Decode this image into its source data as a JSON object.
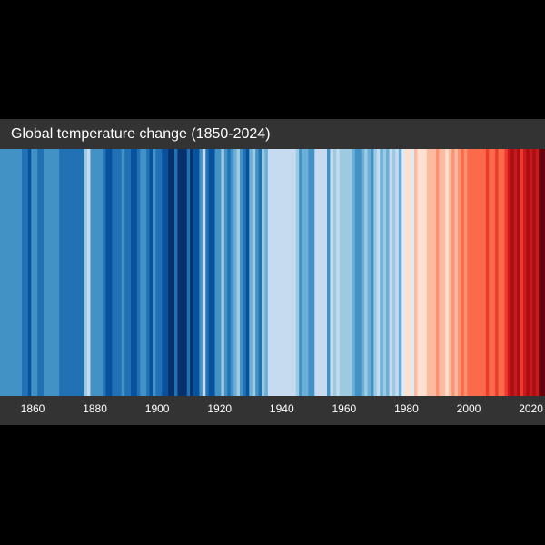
{
  "colors": {
    "background": "#000000",
    "bar": "#333333",
    "text": "#ffffff"
  },
  "chart_data": {
    "type": "heatmap",
    "title": "Global temperature change (1850-2024)",
    "x_range": [
      1850,
      2024
    ],
    "tick_labels": [
      "1860",
      "1880",
      "1900",
      "1920",
      "1940",
      "1960",
      "1980",
      "2000",
      "2020"
    ],
    "years": [
      1850,
      1851,
      1852,
      1853,
      1854,
      1855,
      1856,
      1857,
      1858,
      1859,
      1860,
      1861,
      1862,
      1863,
      1864,
      1865,
      1866,
      1867,
      1868,
      1869,
      1870,
      1871,
      1872,
      1873,
      1874,
      1875,
      1876,
      1877,
      1878,
      1879,
      1880,
      1881,
      1882,
      1883,
      1884,
      1885,
      1886,
      1887,
      1888,
      1889,
      1890,
      1891,
      1892,
      1893,
      1894,
      1895,
      1896,
      1897,
      1898,
      1899,
      1900,
      1901,
      1902,
      1903,
      1904,
      1905,
      1906,
      1907,
      1908,
      1909,
      1910,
      1911,
      1912,
      1913,
      1914,
      1915,
      1916,
      1917,
      1918,
      1919,
      1920,
      1921,
      1922,
      1923,
      1924,
      1925,
      1926,
      1927,
      1928,
      1929,
      1930,
      1931,
      1932,
      1933,
      1934,
      1935,
      1936,
      1937,
      1938,
      1939,
      1940,
      1941,
      1942,
      1943,
      1944,
      1945,
      1946,
      1947,
      1948,
      1949,
      1950,
      1951,
      1952,
      1953,
      1954,
      1955,
      1956,
      1957,
      1958,
      1959,
      1960,
      1961,
      1962,
      1963,
      1964,
      1965,
      1966,
      1967,
      1968,
      1969,
      1970,
      1971,
      1972,
      1973,
      1974,
      1975,
      1976,
      1977,
      1978,
      1979,
      1980,
      1981,
      1982,
      1983,
      1984,
      1985,
      1986,
      1987,
      1988,
      1989,
      1990,
      1991,
      1992,
      1993,
      1994,
      1995,
      1996,
      1997,
      1998,
      1999,
      2000,
      2001,
      2002,
      2003,
      2004,
      2005,
      2006,
      2007,
      2008,
      2009,
      2010,
      2011,
      2012,
      2013,
      2014,
      2015,
      2016,
      2017,
      2018,
      2019,
      2020,
      2021,
      2022,
      2023,
      2024
    ],
    "stripe_colors": [
      "#4292c6",
      "#4292c6",
      "#4292c6",
      "#4292c6",
      "#4292c6",
      "#4292c6",
      "#4292c6",
      "#2171b5",
      "#2171b5",
      "#08519c",
      "#4292c6",
      "#4292c6",
      "#2171b5",
      "#2171b5",
      "#4292c6",
      "#4292c6",
      "#4292c6",
      "#4292c6",
      "#4292c6",
      "#2171b5",
      "#2171b5",
      "#2171b5",
      "#2171b5",
      "#2171b5",
      "#2171b5",
      "#2171b5",
      "#2171b5",
      "#9ecae1",
      "#c6dbef",
      "#4292c6",
      "#4292c6",
      "#4292c6",
      "#4292c6",
      "#2171b5",
      "#08519c",
      "#08519c",
      "#2171b5",
      "#2171b5",
      "#2171b5",
      "#4292c6",
      "#2171b5",
      "#2171b5",
      "#08519c",
      "#08519c",
      "#2171b5",
      "#4292c6",
      "#4292c6",
      "#2171b5",
      "#08519c",
      "#4292c6",
      "#2171b5",
      "#2171b5",
      "#08519c",
      "#08519c",
      "#08306b",
      "#08306b",
      "#2171b5",
      "#08306b",
      "#08306b",
      "#08306b",
      "#2171b5",
      "#08306b",
      "#08519c",
      "#08519c",
      "#4292c6",
      "#c6dbef",
      "#2171b5",
      "#08519c",
      "#08519c",
      "#4292c6",
      "#4292c6",
      "#9ecae1",
      "#4292c6",
      "#2171b5",
      "#4292c6",
      "#6baed6",
      "#9ecae1",
      "#4292c6",
      "#2171b5",
      "#08519c",
      "#6baed6",
      "#9ecae1",
      "#4292c6",
      "#2171b5",
      "#9ecae1",
      "#6baed6",
      "#c6dbef",
      "#c6dbef",
      "#c6dbef",
      "#c6dbef",
      "#c6dbef",
      "#c6dbef",
      "#c6dbef",
      "#c6dbef",
      "#c6dbef",
      "#9ecae1",
      "#4292c6",
      "#6baed6",
      "#6baed6",
      "#4292c6",
      "#4292c6",
      "#c6dbef",
      "#c6dbef",
      "#c6dbef",
      "#c6dbef",
      "#4292c6",
      "#c6dbef",
      "#9ecae1",
      "#c6dbef",
      "#9ecae1",
      "#9ecae1",
      "#9ecae1",
      "#9ecae1",
      "#6baed6",
      "#4292c6",
      "#4292c6",
      "#6baed6",
      "#9ecae1",
      "#6baed6",
      "#4292c6",
      "#9ecae1",
      "#c6dbef",
      "#6baed6",
      "#9ecae1",
      "#6baed6",
      "#c6dbef",
      "#9ecae1",
      "#c6dbef",
      "#6baed6",
      "#deebf7",
      "#fee0d2",
      "#fee0d2",
      "#deebf7",
      "#fcbba1",
      "#fee0d2",
      "#fee0d2",
      "#fee0d2",
      "#fcbba1",
      "#fcbba1",
      "#fcbba1",
      "#fc9272",
      "#fcbba1",
      "#fcbba1",
      "#fee0d2",
      "#fcbba1",
      "#fc9272",
      "#fcbba1",
      "#fc9272",
      "#fb6a4a",
      "#fc9272",
      "#fb6a4a",
      "#fb6a4a",
      "#fb6a4a",
      "#fb6a4a",
      "#fb6a4a",
      "#fb6a4a",
      "#ef3b2c",
      "#fb6a4a",
      "#fb6a4a",
      "#ef3b2c",
      "#fb6a4a",
      "#fb6a4a",
      "#ef3b2c",
      "#cb181d",
      "#a50f15",
      "#cb181d",
      "#a50f15",
      "#ef3b2c",
      "#cb181d",
      "#a50f15",
      "#cb181d",
      "#a50f15",
      "#cb181d",
      "#67000d",
      "#67000d"
    ]
  }
}
